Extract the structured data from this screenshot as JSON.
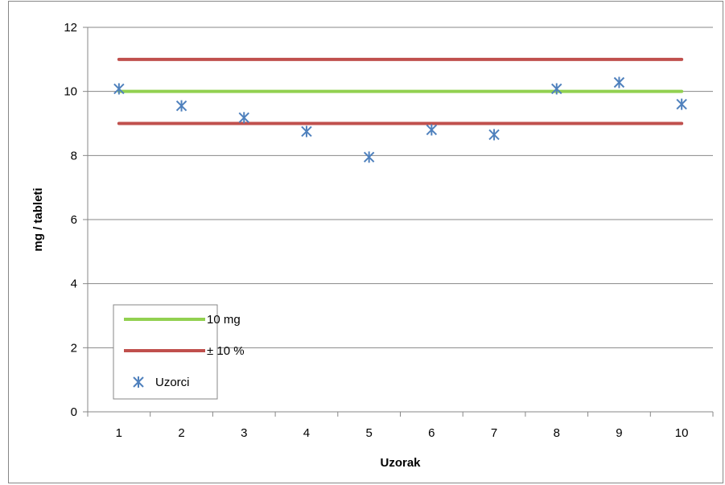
{
  "chart_data": {
    "type": "scatter",
    "title": "",
    "xlabel": "Uzorak",
    "ylabel": "mg / tableti",
    "x_categories": [
      "1",
      "2",
      "3",
      "4",
      "5",
      "6",
      "7",
      "8",
      "9",
      "10"
    ],
    "ylim": [
      0,
      12
    ],
    "y_ticks": [
      "0",
      "2",
      "4",
      "6",
      "8",
      "10",
      "12"
    ],
    "grid": true,
    "legend_position": "bottom-left",
    "series": [
      {
        "name": "10 mg",
        "kind": "line",
        "color": "#92d050",
        "values": [
          10,
          10,
          10,
          10,
          10,
          10,
          10,
          10,
          10,
          10
        ]
      },
      {
        "name": "± 10 %",
        "kind": "line",
        "color": "#c0504d",
        "values": [
          11,
          11,
          11,
          11,
          11,
          11,
          11,
          11,
          11,
          11
        ]
      },
      {
        "name": "",
        "kind": "line",
        "color": "#c0504d",
        "values": [
          9,
          9,
          9,
          9,
          9,
          9,
          9,
          9,
          9,
          9
        ]
      },
      {
        "name": "Uzorci",
        "kind": "marker",
        "color": "#4f81bd",
        "values": [
          10.08,
          9.55,
          9.18,
          8.75,
          7.95,
          8.8,
          8.65,
          10.08,
          10.28,
          9.6
        ]
      }
    ]
  }
}
